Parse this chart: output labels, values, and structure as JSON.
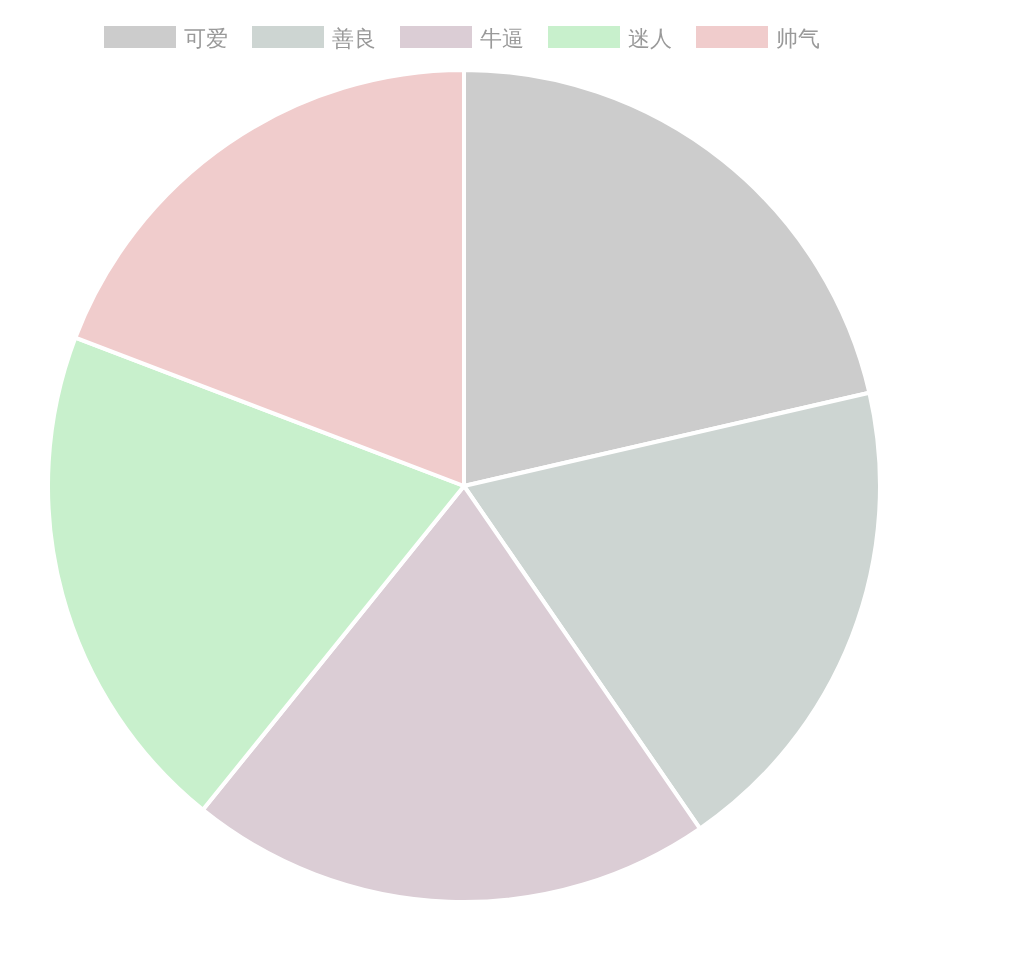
{
  "chart_data": {
    "type": "pie",
    "categories": [
      "可爱",
      "善良",
      "牛逼",
      "迷人",
      "帅气"
    ],
    "values": [
      21.4,
      19.0,
      20.4,
      20.0,
      19.2
    ],
    "colors": [
      "#cccccc",
      "#cdd5d2",
      "#dbcdd5",
      "#c8f0cc",
      "#f0cccc"
    ],
    "legend": "top"
  }
}
